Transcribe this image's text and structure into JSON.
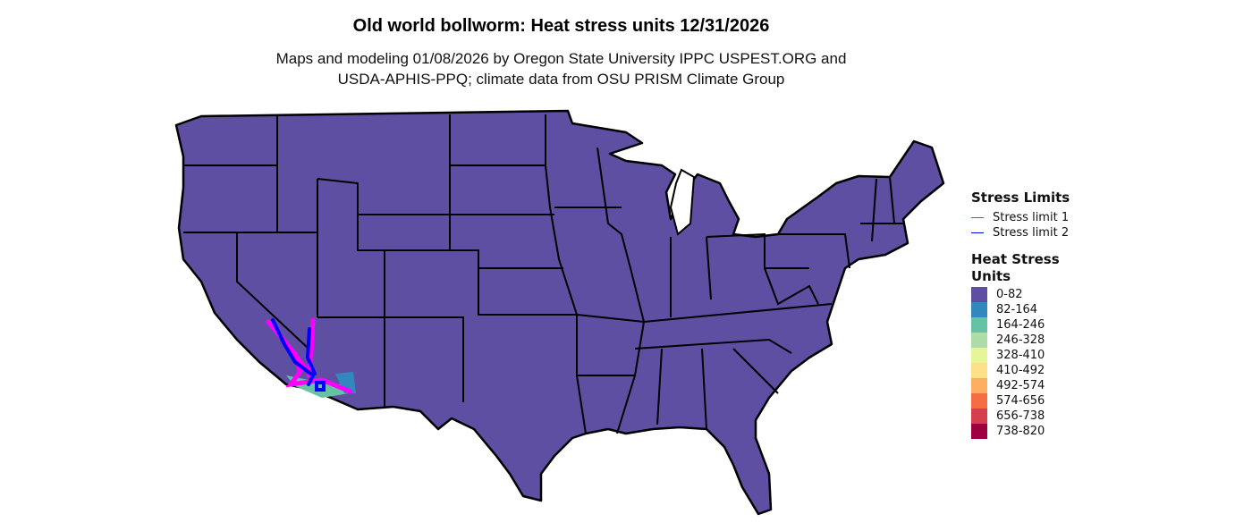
{
  "title": "Old world bollworm: Heat stress units 12/31/2026",
  "subtitle_line1": "Maps and modeling 01/08/2026 by Oregon State University IPPC USPEST.ORG and",
  "subtitle_line2": "USDA-APHIS-PPQ; climate data from OSU PRISM Climate Group",
  "map": {
    "region": "Contiguous United States",
    "base_color": "#5E4FA2",
    "border_color": "#000000"
  },
  "legend": {
    "stress_title": "Stress Limits",
    "stress": [
      {
        "label": "Stress limit 1",
        "color": "#FF00FF"
      },
      {
        "label": "Stress limit 2",
        "color": "#0000FF"
      }
    ],
    "heat_title_1": "Heat Stress",
    "heat_title_2": "Units",
    "bins": [
      {
        "label": "0-82",
        "color": "#5E4FA2"
      },
      {
        "label": "82-164",
        "color": "#3288BD"
      },
      {
        "label": "164-246",
        "color": "#66C2A5"
      },
      {
        "label": "246-328",
        "color": "#ABDDA4"
      },
      {
        "label": "328-410",
        "color": "#E6F598"
      },
      {
        "label": "410-492",
        "color": "#FEE08B"
      },
      {
        "label": "492-574",
        "color": "#FDAE61"
      },
      {
        "label": "574-656",
        "color": "#F46D43"
      },
      {
        "label": "656-738",
        "color": "#D53E4F"
      },
      {
        "label": "738-820",
        "color": "#9E0142"
      }
    ]
  }
}
